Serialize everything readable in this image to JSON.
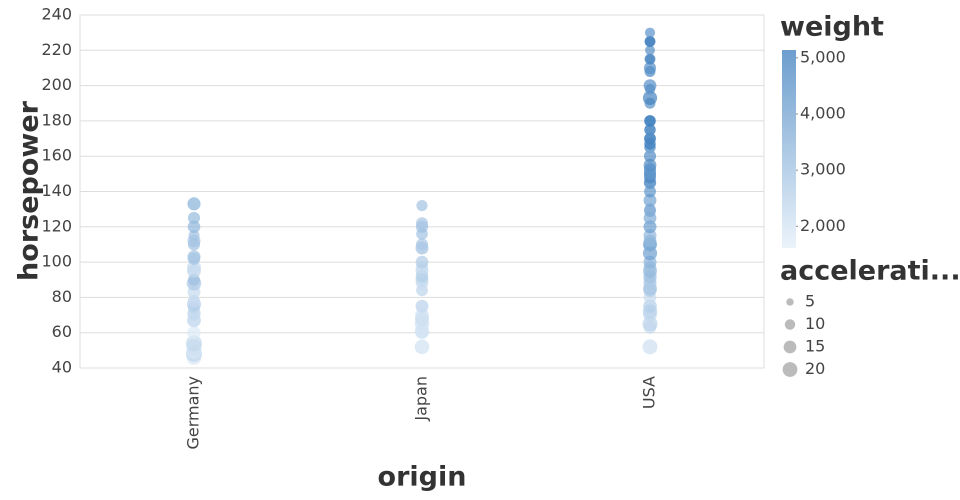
{
  "chart_data": {
    "type": "strip",
    "x_title": "origin",
    "y_title": "horsepower",
    "categories": [
      "Germany",
      "Japan",
      "USA"
    ],
    "groups": [
      {
        "horsepower": [
          46,
          48,
          49,
          52,
          54,
          60,
          67,
          67,
          70,
          71,
          74,
          76,
          78,
          83,
          88,
          88,
          90,
          95,
          97,
          102,
          103,
          110,
          112,
          115,
          120,
          125,
          133
        ],
        "weight": [
          1835,
          2335,
          1867,
          2035,
          2254,
          1760,
          1963,
          2145,
          2150,
          2223,
          2370,
          2511,
          2190,
          2202,
          2130,
          2605,
          2950,
          2375,
          2145,
          2945,
          2830,
          2950,
          2868,
          2890,
          3230,
          3140,
          3410
        ],
        "acceleration": [
          20.5,
          23.7,
          19.5,
          22.2,
          23.5,
          16.4,
          15.5,
          18,
          14,
          16.5,
          13,
          18,
          14.1,
          15.3,
          14.5,
          19.6,
          13.2,
          17.5,
          18,
          14.2,
          15.9,
          13.5,
          15.5,
          11.3,
          14.7,
          13.6,
          15.8
        ]
      },
      {
        "horsepower": [
          52,
          60,
          61,
          65,
          67,
          68,
          70,
          75,
          75,
          84,
          88,
          90,
          92,
          95,
          97,
          100,
          108,
          110,
          116,
          120,
          122,
          132
        ],
        "weight": [
          1985,
          1800,
          2003,
          1975,
          1995,
          2045,
          1990,
          2108,
          2155,
          2385,
          2130,
          2265,
          2585,
          2372,
          2130,
          2615,
          2930,
          2720,
          2900,
          2930,
          2807,
          2910
        ],
        "acceleration": [
          19.4,
          16.4,
          19,
          19.4,
          16.2,
          18.5,
          16.9,
          15.5,
          14.4,
          12.9,
          14.5,
          15.5,
          14.5,
          15,
          14.5,
          14.8,
          15.5,
          13.5,
          12.6,
          13.8,
          13.5,
          11.4
        ]
      },
      {
        "horsepower": [
          52,
          63,
          65,
          70,
          72,
          75,
          80,
          84,
          85,
          88,
          90,
          92,
          95,
          97,
          100,
          105,
          110,
          110,
          112,
          115,
          120,
          125,
          129,
          130,
          135,
          140,
          145,
          145,
          148,
          150,
          150,
          152,
          153,
          155,
          160,
          165,
          165,
          167,
          170,
          170,
          175,
          175,
          180,
          180,
          190,
          193,
          198,
          200,
          208,
          210,
          215,
          215,
          220,
          225,
          225,
          230
        ],
        "weight": [
          2035,
          2125,
          2380,
          2245,
          2408,
          2542,
          2164,
          2525,
          2855,
          2720,
          2648,
          2865,
          3193,
          2984,
          3329,
          3897,
          3645,
          3632,
          3196,
          3245,
          3962,
          3605,
          3725,
          3504,
          3830,
          4215,
          4440,
          4082,
          4657,
          4457,
          4135,
          4215,
          4154,
          4360,
          4456,
          4209,
          3693,
          4906,
          4746,
          4654,
          4385,
          4464,
          4499,
          4955,
          4335,
          4732,
          4341,
          4376,
          4633,
          4382,
          4312,
          4735,
          4354,
          4425,
          4951,
          4278
        ],
        "acceleration": [
          20.5,
          14.7,
          20.7,
          16.9,
          19.5,
          17,
          15,
          16,
          17.6,
          15.4,
          15,
          16.4,
          17.8,
          14.5,
          15.5,
          18.5,
          16.2,
          18,
          15.2,
          15.4,
          15.5,
          15,
          13.4,
          12,
          15.2,
          13,
          14,
          13,
          13.5,
          13.5,
          13.5,
          12.8,
          13.5,
          14.9,
          13.5,
          12,
          11.5,
          12.5,
          12,
          13,
          12,
          11.5,
          12.5,
          11.5,
          11,
          18.5,
          10,
          15,
          11,
          13.5,
          8.5,
          11,
          9,
          10,
          11,
          9.5
        ]
      }
    ],
    "ylim": [
      40,
      240
    ],
    "yticks": [
      40,
      60,
      80,
      100,
      120,
      140,
      160,
      180,
      200,
      220,
      240
    ],
    "grid": true,
    "opacity": 0.7,
    "color_legend": {
      "title": "weight",
      "lim": [
        1613,
        5140
      ],
      "colors": [
        "#e3eef9",
        "#2f75b9"
      ],
      "ticks": [
        {
          "value": 2000,
          "label": "2,000"
        },
        {
          "value": 3000,
          "label": "3,000"
        },
        {
          "value": 4000,
          "label": "4,000"
        },
        {
          "value": 5000,
          "label": "5,000"
        }
      ]
    },
    "size_legend": {
      "title": "accelerati...",
      "values": [
        5,
        10,
        15,
        20
      ],
      "color": "#bbbbbb"
    }
  }
}
